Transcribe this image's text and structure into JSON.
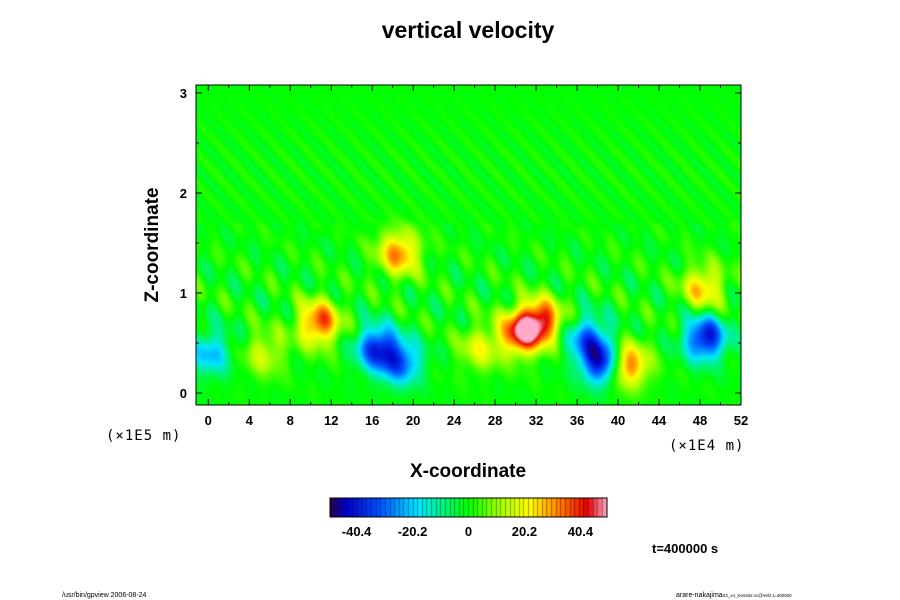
{
  "chart_data": {
    "type": "heatmap",
    "title": "vertical velocity",
    "xlabel": "X-coordinate",
    "ylabel": "Z-coordinate",
    "x_scale_label": "(×1E4 m)",
    "y_scale_label": "(×1E5 m)",
    "x_ticks": [
      0,
      4,
      8,
      12,
      16,
      20,
      24,
      28,
      32,
      36,
      40,
      44,
      48,
      52
    ],
    "y_ticks": [
      0,
      1,
      2,
      3
    ],
    "xlim": [
      -1.2,
      52
    ],
    "ylim": [
      -0.12,
      3.08
    ],
    "colorbar": {
      "range": [
        -50,
        50
      ],
      "ticks": [
        -40.4,
        -20.2,
        0,
        20.2,
        40.4
      ]
    },
    "features": [
      {
        "sign": "negative",
        "x": 16.5,
        "z": 0.45,
        "value": -38
      },
      {
        "sign": "negative",
        "x": 18.8,
        "z": 0.3,
        "value": -30
      },
      {
        "sign": "negative",
        "x": 38.5,
        "z": 0.3,
        "value": -45
      },
      {
        "sign": "negative",
        "x": 37.0,
        "z": 0.55,
        "value": -28
      },
      {
        "sign": "negative",
        "x": 48.5,
        "z": 0.55,
        "value": -42
      },
      {
        "sign": "negative",
        "x": 0.2,
        "z": 0.4,
        "value": -22
      },
      {
        "sign": "positive",
        "x": 30.5,
        "z": 0.6,
        "value": 44
      },
      {
        "sign": "positive",
        "x": 32.5,
        "z": 0.72,
        "value": 40
      },
      {
        "sign": "positive",
        "x": 26.5,
        "z": 0.45,
        "value": 18
      },
      {
        "sign": "positive",
        "x": 10.8,
        "z": 0.7,
        "value": 38
      },
      {
        "sign": "positive",
        "x": 40.8,
        "z": 0.28,
        "value": 40
      },
      {
        "sign": "positive",
        "x": 18.6,
        "z": 1.4,
        "value": 32
      },
      {
        "sign": "positive",
        "x": 48.3,
        "z": 1.05,
        "value": 26
      },
      {
        "sign": "positive",
        "x": 5.5,
        "z": 0.4,
        "value": 16
      }
    ]
  },
  "time_label": "t=400000 s",
  "footer": {
    "left": "/usr/bin/gpview 2006-08-24",
    "right_main": "arare-nakajima",
    "right_small": "03_x4_Kessler.nc@Vel2,t=400000"
  }
}
